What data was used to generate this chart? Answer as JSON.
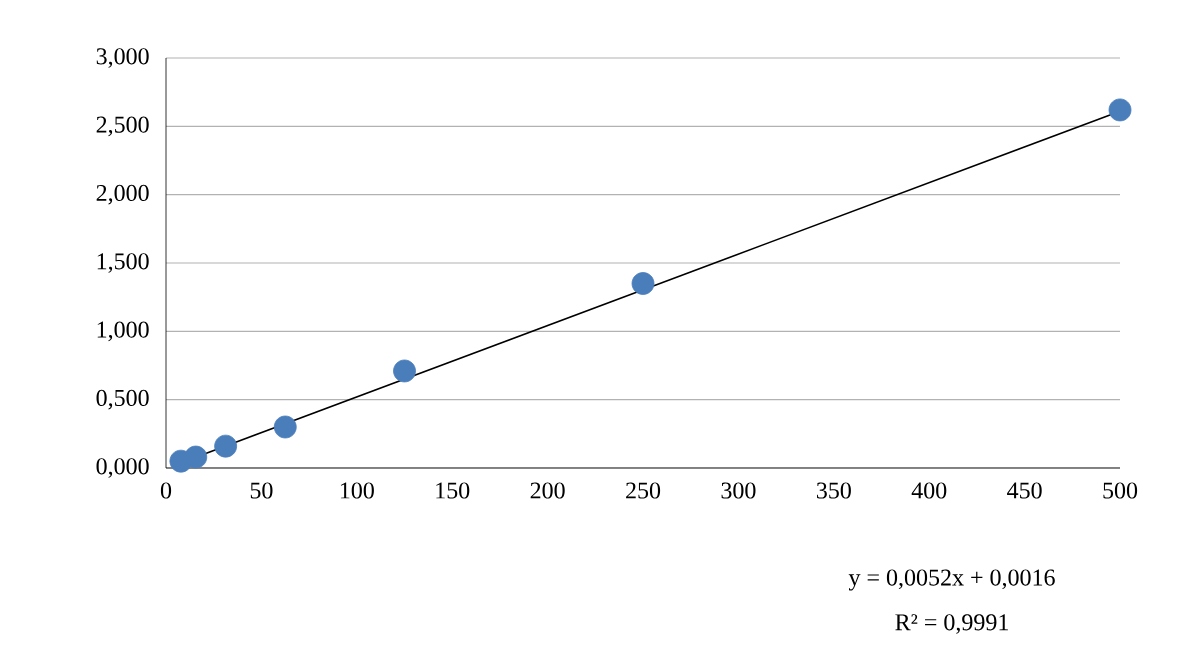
{
  "chart_data": {
    "type": "scatter",
    "marker": "circle",
    "grid": "y",
    "xlim": [
      0,
      500
    ],
    "xticks": [
      0,
      50,
      100,
      150,
      200,
      250,
      300,
      350,
      400,
      450,
      500
    ],
    "ylim": [
      0,
      3
    ],
    "yticks": [
      {
        "value": 0,
        "label": "0,000"
      },
      {
        "value": 0.5,
        "label": "0,500"
      },
      {
        "value": 1,
        "label": "1,000"
      },
      {
        "value": 1.5,
        "label": "1,500"
      },
      {
        "value": 2,
        "label": "2,000"
      },
      {
        "value": 2.5,
        "label": "2,500"
      },
      {
        "value": 3,
        "label": "3,000"
      }
    ],
    "series": [
      {
        "color": "#4a7ebb",
        "x": [
          7.8,
          15.6,
          31.25,
          62.5,
          125,
          250,
          500
        ],
        "values": [
          0.05,
          0.08,
          0.16,
          0.3,
          0.71,
          1.35,
          2.62
        ]
      },
      {
        "type": "line",
        "color": "#000000",
        "marker": "none",
        "x": [
          10,
          500
        ],
        "values": [
          0.05,
          2.61
        ]
      }
    ],
    "annotations": [
      "y = 0,0052x + 0,0016",
      "R² = 0,9991"
    ]
  }
}
